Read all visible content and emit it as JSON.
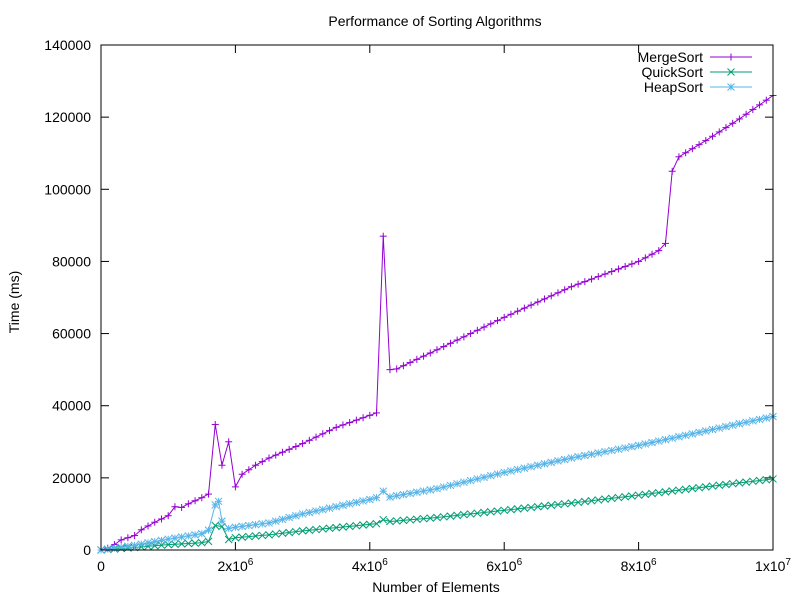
{
  "chart_data": {
    "type": "line",
    "title": "Performance of Sorting Algorithms",
    "xlabel": "Number of Elements",
    "ylabel": "Time (ms)",
    "xlim": [
      0,
      10000000
    ],
    "ylim": [
      0,
      140000
    ],
    "x_ticks": [
      {
        "value": 0,
        "label": "0"
      },
      {
        "value": 2000000,
        "label": "2x10",
        "exp": "6"
      },
      {
        "value": 4000000,
        "label": "4x10",
        "exp": "6"
      },
      {
        "value": 6000000,
        "label": "6x10",
        "exp": "6"
      },
      {
        "value": 8000000,
        "label": "8x10",
        "exp": "6"
      },
      {
        "value": 10000000,
        "label": "1x10",
        "exp": "7"
      }
    ],
    "y_ticks": [
      {
        "value": 0,
        "label": "0"
      },
      {
        "value": 20000,
        "label": "20000"
      },
      {
        "value": 40000,
        "label": "40000"
      },
      {
        "value": 60000,
        "label": "60000"
      },
      {
        "value": 80000,
        "label": "80000"
      },
      {
        "value": 100000,
        "label": "100000"
      },
      {
        "value": 120000,
        "label": "120000"
      },
      {
        "value": 140000,
        "label": "140000"
      }
    ],
    "grid": false,
    "legend_position": "top-right",
    "series": [
      {
        "name": "MergeSort",
        "color": "#9400d3",
        "marker": "plus",
        "anchors": [
          [
            0,
            0
          ],
          [
            100000,
            500
          ],
          [
            200000,
            1500
          ],
          [
            300000,
            2800
          ],
          [
            500000,
            4000
          ],
          [
            600000,
            5600
          ],
          [
            800000,
            7700
          ],
          [
            1000000,
            9500
          ],
          [
            1100000,
            12000
          ],
          [
            1200000,
            11800
          ],
          [
            1300000,
            12800
          ],
          [
            1500000,
            14500
          ],
          [
            1600000,
            15500
          ],
          [
            1700000,
            34800
          ],
          [
            1800000,
            23500
          ],
          [
            1900000,
            30000
          ],
          [
            2000000,
            17500
          ],
          [
            2100000,
            21000
          ],
          [
            2300000,
            23500
          ],
          [
            2500000,
            25500
          ],
          [
            3000000,
            29500
          ],
          [
            3500000,
            34000
          ],
          [
            4100000,
            38000
          ],
          [
            4200000,
            87000
          ],
          [
            4300000,
            50000
          ],
          [
            4400000,
            50200
          ],
          [
            5000000,
            55500
          ],
          [
            6000000,
            64500
          ],
          [
            7000000,
            73000
          ],
          [
            8000000,
            80000
          ],
          [
            8300000,
            83000
          ],
          [
            8400000,
            85000
          ],
          [
            8500000,
            105000
          ],
          [
            8600000,
            109000
          ],
          [
            9000000,
            113500
          ],
          [
            9500000,
            119500
          ],
          [
            10000000,
            126000
          ]
        ]
      },
      {
        "name": "QuickSort",
        "color": "#009e73",
        "marker": "cross",
        "anchors": [
          [
            0,
            0
          ],
          [
            500000,
            700
          ],
          [
            1000000,
            1500
          ],
          [
            1500000,
            2000
          ],
          [
            1600000,
            2400
          ],
          [
            1700000,
            6800
          ],
          [
            1800000,
            6500
          ],
          [
            1900000,
            2900
          ],
          [
            2000000,
            3400
          ],
          [
            2500000,
            4200
          ],
          [
            3000000,
            5300
          ],
          [
            3500000,
            6200
          ],
          [
            4000000,
            7100
          ],
          [
            4100000,
            7300
          ],
          [
            4200000,
            8400
          ],
          [
            4300000,
            7900
          ],
          [
            5000000,
            9000
          ],
          [
            6000000,
            11000
          ],
          [
            7000000,
            13000
          ],
          [
            8000000,
            15200
          ],
          [
            9000000,
            17500
          ],
          [
            10000000,
            19700
          ]
        ]
      },
      {
        "name": "HeapSort",
        "color": "#56b4e9",
        "marker": "star",
        "anchors": [
          [
            0,
            0
          ],
          [
            500000,
            1300
          ],
          [
            1000000,
            3000
          ],
          [
            1500000,
            4500
          ],
          [
            1600000,
            5500
          ],
          [
            1700000,
            12500
          ],
          [
            1750000,
            13500
          ],
          [
            1800000,
            8000
          ],
          [
            1900000,
            6000
          ],
          [
            2000000,
            6300
          ],
          [
            2500000,
            7500
          ],
          [
            3000000,
            10000
          ],
          [
            3500000,
            12000
          ],
          [
            4000000,
            14000
          ],
          [
            4100000,
            14500
          ],
          [
            4200000,
            16300
          ],
          [
            4300000,
            14700
          ],
          [
            5000000,
            17000
          ],
          [
            6000000,
            21500
          ],
          [
            7000000,
            25500
          ],
          [
            8000000,
            29000
          ],
          [
            9000000,
            33000
          ],
          [
            10000000,
            37000
          ]
        ]
      }
    ]
  }
}
